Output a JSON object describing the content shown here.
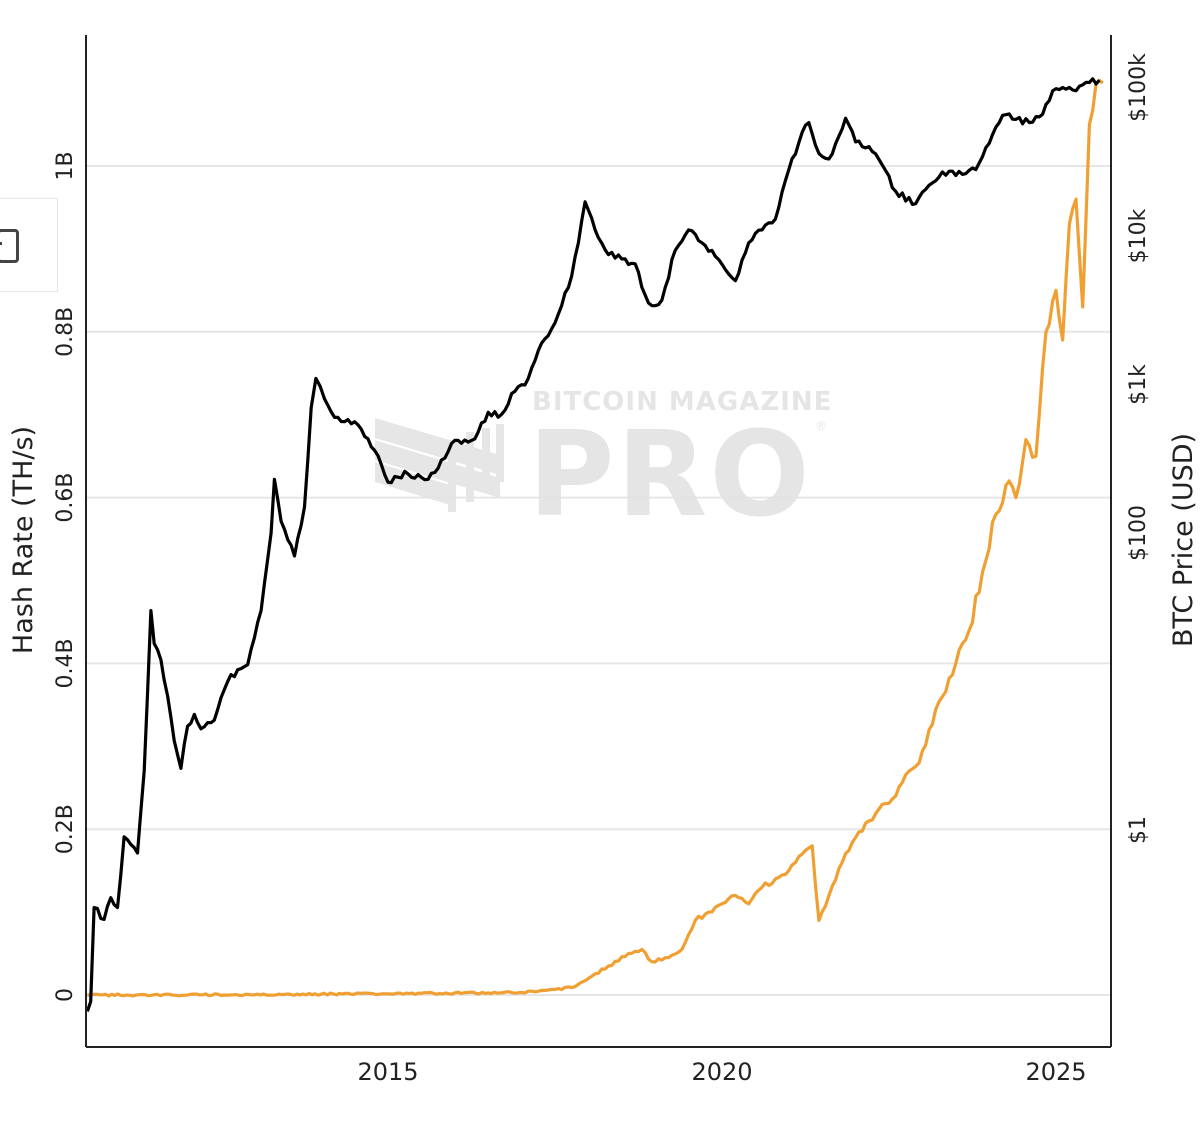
{
  "watermark": {
    "line1": "BITCOIN MAGAZINE",
    "line2": "PRO",
    "registered": "®"
  },
  "side_control": {
    "icon": "panel-toggle-icon"
  },
  "colors": {
    "price_line": "#000000",
    "hashrate_line": "#f0a032",
    "gridline": "#e6e6e6",
    "axis": "#222222",
    "watermark": "#e3e3e3"
  },
  "chart_data": {
    "type": "line",
    "title": "",
    "xlabel": "",
    "ylabel_left": "Hash Rate (TH/s)",
    "ylabel_right": "BTC Price (USD)",
    "x_ticks": [
      "2015",
      "2020",
      "2025"
    ],
    "y_left_ticks": [
      "0",
      "0.2B",
      "0.4B",
      "0.6B",
      "0.8B",
      "1B"
    ],
    "y_left_tick_values": [
      0,
      200000000,
      400000000,
      600000000,
      800000000,
      1000000000
    ],
    "y_right_ticks": [
      "$1",
      "$100",
      "$1k",
      "$10k",
      "$100k"
    ],
    "y_right_tick_values": [
      1,
      100,
      1000,
      10000,
      100000
    ],
    "y_right_scale": "log",
    "xlim": [
      2010.5,
      2025.8
    ],
    "ylim_left": [
      -62000000,
      1158000000
    ],
    "grid": true,
    "legend": null,
    "series": [
      {
        "name": "BTC Price (USD)",
        "axis": "right",
        "color": "#000000",
        "x": [
          2010.5,
          2010.55,
          2010.6,
          2010.75,
          2010.85,
          2010.95,
          2011.05,
          2011.15,
          2011.25,
          2011.35,
          2011.45,
          2011.5,
          2011.6,
          2011.7,
          2011.8,
          2011.9,
          2012.0,
          2012.1,
          2012.2,
          2012.4,
          2012.6,
          2012.75,
          2012.9,
          2013.1,
          2013.25,
          2013.3,
          2013.4,
          2013.5,
          2013.6,
          2013.75,
          2013.85,
          2013.92,
          2014.05,
          2014.2,
          2014.4,
          2014.6,
          2014.8,
          2015.0,
          2015.1,
          2015.3,
          2015.6,
          2015.8,
          2016.0,
          2016.3,
          2016.5,
          2016.7,
          2016.9,
          2017.1,
          2017.3,
          2017.5,
          2017.7,
          2017.85,
          2017.95,
          2018.1,
          2018.3,
          2018.5,
          2018.7,
          2018.85,
          2018.95,
          2019.1,
          2019.3,
          2019.5,
          2019.7,
          2019.9,
          2020.2,
          2020.4,
          2020.6,
          2020.8,
          2021.0,
          2021.2,
          2021.3,
          2021.45,
          2021.6,
          2021.75,
          2021.85,
          2022.0,
          2022.2,
          2022.4,
          2022.6,
          2022.9,
          2023.1,
          2023.3,
          2023.6,
          2023.8,
          2024.0,
          2024.2,
          2024.4,
          2024.6,
          2024.8,
          2024.95,
          2025.1,
          2025.3,
          2025.5,
          2025.65
        ],
        "values": [
          0.06,
          0.07,
          0.3,
          0.25,
          0.35,
          0.3,
          0.9,
          0.8,
          0.7,
          2.5,
          30,
          18,
          14,
          8,
          4,
          2.6,
          5,
          6,
          4.8,
          5.5,
          10,
          12,
          13,
          30,
          100,
          230,
          120,
          90,
          70,
          150,
          700,
          1100,
          800,
          600,
          580,
          500,
          360,
          220,
          240,
          250,
          230,
          310,
          420,
          430,
          650,
          630,
          900,
          1100,
          1900,
          2600,
          4500,
          9000,
          17000,
          11000,
          7500,
          7000,
          6500,
          4000,
          3400,
          3700,
          8000,
          11000,
          9000,
          7300,
          5000,
          9000,
          11000,
          13000,
          28000,
          50000,
          58000,
          36000,
          33000,
          47000,
          62000,
          43000,
          40000,
          30000,
          20000,
          16500,
          22000,
          27000,
          26000,
          28000,
          42000,
          65000,
          61000,
          58000,
          66000,
          95000,
          100000,
          95000,
          108000,
          112000
        ]
      },
      {
        "name": "Hash Rate (TH/s)",
        "axis": "left",
        "color": "#f0a032",
        "x": [
          2010.5,
          2012.0,
          2014.0,
          2015.5,
          2016.5,
          2017.0,
          2017.4,
          2017.8,
          2018.0,
          2018.3,
          2018.6,
          2018.8,
          2018.95,
          2019.2,
          2019.4,
          2019.6,
          2019.8,
          2020.0,
          2020.2,
          2020.4,
          2020.6,
          2020.8,
          2021.0,
          2021.2,
          2021.35,
          2021.45,
          2021.6,
          2021.8,
          2022.0,
          2022.2,
          2022.4,
          2022.6,
          2022.8,
          2022.95,
          2023.1,
          2023.3,
          2023.5,
          2023.7,
          2023.9,
          2024.1,
          2024.3,
          2024.4,
          2024.55,
          2024.7,
          2024.85,
          2025.0,
          2025.1,
          2025.2,
          2025.3,
          2025.4,
          2025.5,
          2025.6,
          2025.7
        ],
        "values": [
          0,
          0,
          1000000.0,
          2000000.0,
          2500000.0,
          3000000.0,
          6000000.0,
          10000000.0,
          20000000.0,
          35000000.0,
          50000000.0,
          55000000.0,
          40000000.0,
          45000000.0,
          55000000.0,
          90000000.0,
          100000000.0,
          110000000.0,
          120000000.0,
          110000000.0,
          130000000.0,
          140000000.0,
          150000000.0,
          170000000.0,
          180000000.0,
          90000000.0,
          120000000.0,
          160000000.0,
          190000000.0,
          210000000.0,
          230000000.0,
          240000000.0,
          270000000.0,
          280000000.0,
          320000000.0,
          360000000.0,
          400000000.0,
          440000000.0,
          510000000.0,
          580000000.0,
          620000000.0,
          600000000.0,
          670000000.0,
          650000000.0,
          800000000.0,
          850000000.0,
          790000000.0,
          930000000.0,
          960000000.0,
          830000000.0,
          1050000000.0,
          1100000000.0,
          1100000000.0
        ]
      }
    ]
  }
}
